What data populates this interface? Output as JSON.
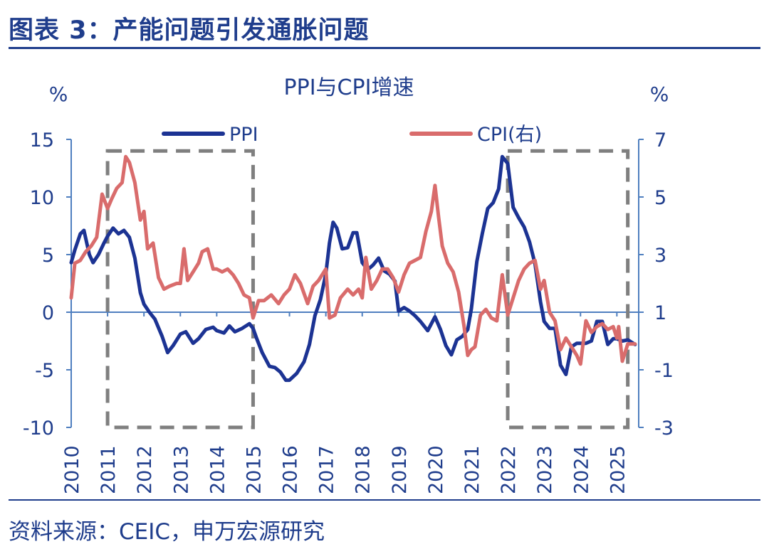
{
  "figure": {
    "title": "图表 3：产能问题引发通胀问题",
    "source": "资料来源：CEIC，申万宏源研究"
  },
  "colors": {
    "ppi": "#1c3393",
    "cpi": "#d96c6c",
    "axis": "#4f7fbf",
    "text": "#1f3d8c",
    "box": "#7f7f7f"
  },
  "chart_data": {
    "type": "line",
    "title": "PPI与CPI增速",
    "ylabel_left": "%",
    "ylabel_right": "%",
    "ylim_left": [
      -10,
      15
    ],
    "ylim_right": [
      -3,
      7
    ],
    "yticks_left": [
      15,
      10,
      5,
      0,
      -5,
      -10
    ],
    "yticks_right": [
      7,
      5,
      3,
      1,
      -1,
      -3
    ],
    "xlim": [
      2010.0,
      2025.6
    ],
    "xticks": [
      "2010",
      "2011",
      "2012",
      "2013",
      "2014",
      "2015",
      "2016",
      "2017",
      "2018",
      "2019",
      "2020",
      "2021",
      "2022",
      "2023",
      "2024",
      "2025"
    ],
    "legend": [
      "PPI",
      "CPI(右)"
    ],
    "series": [
      {
        "name": "PPI",
        "axis": "left",
        "x": [
          2010.0,
          2010.1,
          2010.25,
          2010.35,
          2010.5,
          2010.6,
          2010.75,
          2010.9,
          2011.0,
          2011.15,
          2011.3,
          2011.45,
          2011.6,
          2011.75,
          2011.9,
          2012.0,
          2012.15,
          2012.3,
          2012.5,
          2012.65,
          2012.8,
          2013.0,
          2013.15,
          2013.35,
          2013.5,
          2013.7,
          2013.9,
          2014.0,
          2014.2,
          2014.35,
          2014.5,
          2014.7,
          2014.9,
          2015.0,
          2015.1,
          2015.25,
          2015.45,
          2015.6,
          2015.75,
          2015.9,
          2016.0,
          2016.2,
          2016.4,
          2016.55,
          2016.7,
          2016.85,
          2017.0,
          2017.1,
          2017.2,
          2017.3,
          2017.45,
          2017.6,
          2017.75,
          2017.85,
          2018.0,
          2018.15,
          2018.3,
          2018.45,
          2018.6,
          2018.75,
          2018.9,
          2019.0,
          2019.15,
          2019.3,
          2019.45,
          2019.6,
          2019.8,
          2020.0,
          2020.15,
          2020.3,
          2020.45,
          2020.6,
          2020.75,
          2020.9,
          2021.0,
          2021.15,
          2021.3,
          2021.45,
          2021.6,
          2021.75,
          2021.85,
          2022.0,
          2022.15,
          2022.3,
          2022.45,
          2022.6,
          2022.75,
          2022.9,
          2023.0,
          2023.15,
          2023.3,
          2023.45,
          2023.6,
          2023.75,
          2023.9,
          2024.0,
          2024.15,
          2024.3,
          2024.45,
          2024.6,
          2024.75,
          2024.9,
          2025.0,
          2025.15,
          2025.3,
          2025.5
        ],
        "values": [
          4.3,
          5.4,
          6.8,
          7.1,
          5.0,
          4.3,
          5.0,
          6.0,
          6.6,
          7.3,
          6.8,
          7.1,
          6.5,
          4.7,
          1.7,
          0.7,
          0.0,
          -0.6,
          -2.1,
          -3.5,
          -2.9,
          -1.9,
          -1.7,
          -2.7,
          -2.3,
          -1.5,
          -1.3,
          -1.6,
          -1.8,
          -1.2,
          -1.7,
          -1.4,
          -1.0,
          -1.4,
          -2.3,
          -3.5,
          -4.7,
          -4.8,
          -5.2,
          -5.9,
          -5.9,
          -5.3,
          -4.3,
          -2.8,
          -0.3,
          1.1,
          3.3,
          6.0,
          7.8,
          7.3,
          5.5,
          5.6,
          6.9,
          6.9,
          4.3,
          3.7,
          4.1,
          4.7,
          3.6,
          3.3,
          2.7,
          0.1,
          0.4,
          0.1,
          -0.3,
          -0.8,
          -1.6,
          -0.4,
          -1.5,
          -2.9,
          -3.7,
          -2.4,
          -2.1,
          -1.5,
          0.3,
          4.4,
          6.8,
          9.0,
          9.5,
          10.7,
          13.5,
          12.9,
          9.1,
          8.2,
          7.4,
          6.1,
          4.2,
          0.9,
          -0.8,
          -1.4,
          -1.4,
          -4.6,
          -5.4,
          -3.0,
          -2.7,
          -2.7,
          -2.7,
          -2.5,
          -0.8,
          -0.8,
          -2.8,
          -2.3,
          -2.3,
          -2.5,
          -2.4,
          -2.8
        ]
      },
      {
        "name": "CPI(右)",
        "axis": "right",
        "x": [
          2010.0,
          2010.1,
          2010.25,
          2010.4,
          2010.55,
          2010.7,
          2010.85,
          2011.0,
          2011.1,
          2011.25,
          2011.4,
          2011.5,
          2011.6,
          2011.75,
          2011.9,
          2012.0,
          2012.1,
          2012.25,
          2012.4,
          2012.55,
          2012.7,
          2012.9,
          2013.0,
          2013.1,
          2013.2,
          2013.35,
          2013.5,
          2013.6,
          2013.75,
          2013.9,
          2014.0,
          2014.15,
          2014.3,
          2014.45,
          2014.6,
          2014.75,
          2014.9,
          2015.0,
          2015.15,
          2015.3,
          2015.5,
          2015.7,
          2015.85,
          2016.0,
          2016.15,
          2016.3,
          2016.5,
          2016.65,
          2016.8,
          2017.0,
          2017.1,
          2017.25,
          2017.4,
          2017.6,
          2017.75,
          2017.9,
          2018.0,
          2018.1,
          2018.25,
          2018.4,
          2018.55,
          2018.7,
          2018.85,
          2019.0,
          2019.15,
          2019.3,
          2019.45,
          2019.6,
          2019.75,
          2019.9,
          2020.0,
          2020.1,
          2020.2,
          2020.35,
          2020.5,
          2020.65,
          2020.8,
          2020.9,
          2021.0,
          2021.1,
          2021.25,
          2021.4,
          2021.55,
          2021.7,
          2021.85,
          2022.0,
          2022.15,
          2022.3,
          2022.45,
          2022.6,
          2022.75,
          2022.9,
          2023.0,
          2023.15,
          2023.3,
          2023.45,
          2023.6,
          2023.75,
          2023.9,
          2024.0,
          2024.15,
          2024.3,
          2024.45,
          2024.6,
          2024.75,
          2024.9,
          2025.0,
          2025.05,
          2025.15,
          2025.3,
          2025.5
        ],
        "values": [
          1.5,
          2.7,
          2.8,
          3.1,
          3.3,
          3.6,
          5.1,
          4.6,
          4.9,
          5.3,
          5.5,
          6.4,
          6.2,
          5.5,
          4.2,
          4.5,
          3.2,
          3.4,
          2.2,
          1.8,
          1.9,
          2.0,
          2.0,
          3.2,
          2.1,
          2.4,
          2.7,
          3.1,
          3.2,
          2.5,
          2.5,
          2.4,
          2.5,
          2.3,
          2.0,
          1.6,
          1.5,
          0.8,
          1.4,
          1.4,
          1.6,
          1.3,
          1.6,
          1.8,
          2.3,
          2.0,
          1.3,
          1.9,
          2.1,
          2.5,
          0.8,
          0.9,
          1.5,
          1.8,
          1.6,
          1.8,
          1.5,
          2.9,
          1.8,
          2.1,
          2.5,
          2.5,
          2.2,
          1.7,
          2.3,
          2.7,
          2.8,
          2.9,
          3.8,
          4.5,
          5.4,
          4.3,
          3.3,
          2.7,
          2.4,
          1.7,
          0.5,
          -0.5,
          -0.3,
          -0.2,
          0.9,
          1.1,
          0.8,
          0.7,
          2.3,
          0.9,
          1.5,
          2.1,
          2.5,
          2.7,
          2.8,
          1.8,
          2.1,
          1.0,
          0.7,
          -0.3,
          0.1,
          -0.2,
          -0.5,
          -0.8,
          0.7,
          0.3,
          0.5,
          0.6,
          0.4,
          0.5,
          0.1,
          0.5,
          -0.7,
          -0.1,
          -0.1
        ]
      }
    ],
    "highlight_ranges": [
      {
        "x": [
          2011.0,
          2015.0
        ],
        "y_left": [
          -10,
          14
        ]
      },
      {
        "x": [
          2022.0,
          2025.3
        ],
        "y_left": [
          -10,
          14
        ]
      }
    ]
  }
}
